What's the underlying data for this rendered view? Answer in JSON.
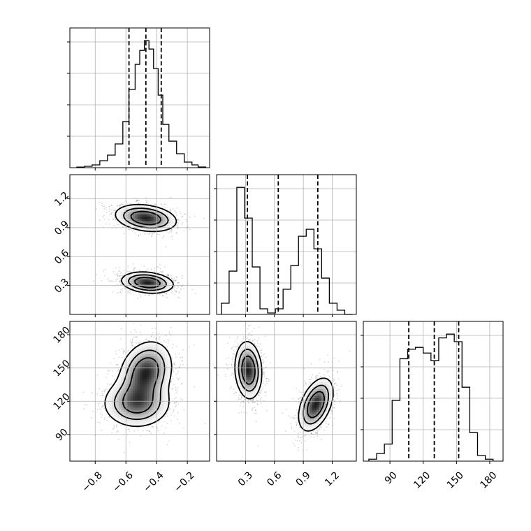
{
  "chart_data": {
    "type": "corner",
    "title": "",
    "grid": true,
    "parameters": [
      {
        "name": "",
        "range": [
          -0.965,
          -0.055
        ],
        "ticks": [
          -0.8,
          -0.6,
          -0.4,
          -0.2
        ],
        "tick_labels": [
          "−0.8",
          "−0.6",
          "−0.4",
          "−0.2"
        ],
        "quantiles": [
          -0.58,
          -0.47,
          -0.37
        ]
      },
      {
        "name": "",
        "range": [
          0.0,
          1.45
        ],
        "ticks": [
          0.3,
          0.6,
          0.9,
          1.2
        ],
        "tick_labels": [
          "0.3",
          "0.6",
          "0.9",
          "1.2"
        ],
        "quantiles": [
          0.32,
          0.64,
          1.05
        ]
      },
      {
        "name": "",
        "range": [
          66,
          192
        ],
        "ticks": [
          90,
          120,
          150,
          180
        ],
        "tick_labels": [
          "90",
          "120",
          "150",
          "180"
        ],
        "quantiles": [
          107,
          130,
          152
        ]
      }
    ],
    "histograms": [
      {
        "param": 0,
        "bin_edges": [
          -0.92,
          -0.87,
          -0.82,
          -0.77,
          -0.72,
          -0.67,
          -0.62,
          -0.58,
          -0.54,
          -0.51,
          -0.48,
          -0.45,
          -0.42,
          -0.39,
          -0.36,
          -0.32,
          -0.27,
          -0.22,
          -0.17,
          -0.13,
          -0.08
        ],
        "counts": [
          0.4,
          1,
          2,
          5,
          9,
          17,
          33,
          56,
          74,
          84,
          91,
          85,
          71,
          52,
          31,
          19,
          10,
          4,
          2,
          0.5
        ]
      },
      {
        "param": 1,
        "bin_edges": [
          0.05,
          0.13,
          0.21,
          0.29,
          0.37,
          0.45,
          0.53,
          0.61,
          0.69,
          0.77,
          0.85,
          0.93,
          1.01,
          1.09,
          1.17,
          1.25,
          1.33,
          1.41
        ],
        "counts": [
          8,
          31,
          91,
          69,
          34,
          4,
          1,
          4,
          18,
          35,
          56,
          61,
          47,
          26,
          8,
          3,
          0
        ]
      },
      {
        "param": 2,
        "bin_edges": [
          71,
          78,
          85,
          92,
          99,
          106,
          113,
          120,
          127,
          134,
          141,
          148,
          155,
          162,
          169,
          176,
          183
        ],
        "counts": [
          1,
          4,
          9,
          32,
          54,
          59,
          60,
          57,
          53,
          65,
          67,
          63,
          39,
          15,
          3,
          1
        ]
      }
    ],
    "pairs": [
      {
        "x": 0,
        "y": 1,
        "clusters": [
          {
            "cx": -0.47,
            "cy": 1.0,
            "sx": 0.1,
            "sy": 0.07,
            "rho": -0.25,
            "weight": 0.5
          },
          {
            "cx": -0.46,
            "cy": 0.33,
            "sx": 0.085,
            "sy": 0.055,
            "rho": -0.2,
            "weight": 0.5
          }
        ]
      },
      {
        "x": 0,
        "y": 2,
        "clusters": [
          {
            "cx": -0.47,
            "cy": 146,
            "sx": 0.085,
            "sy": 14,
            "rho": 0.2,
            "weight": 0.55
          },
          {
            "cx": -0.53,
            "cy": 118,
            "sx": 0.11,
            "sy": 11,
            "rho": 0.0,
            "weight": 0.45
          }
        ]
      },
      {
        "x": 1,
        "y": 2,
        "clusters": [
          {
            "cx": 0.33,
            "cy": 148,
            "sx": 0.07,
            "sy": 13,
            "rho": -0.1,
            "weight": 0.5
          },
          {
            "cx": 1.03,
            "cy": 117,
            "sx": 0.09,
            "sy": 12,
            "rho": 0.45,
            "weight": 0.5
          }
        ]
      }
    ]
  }
}
